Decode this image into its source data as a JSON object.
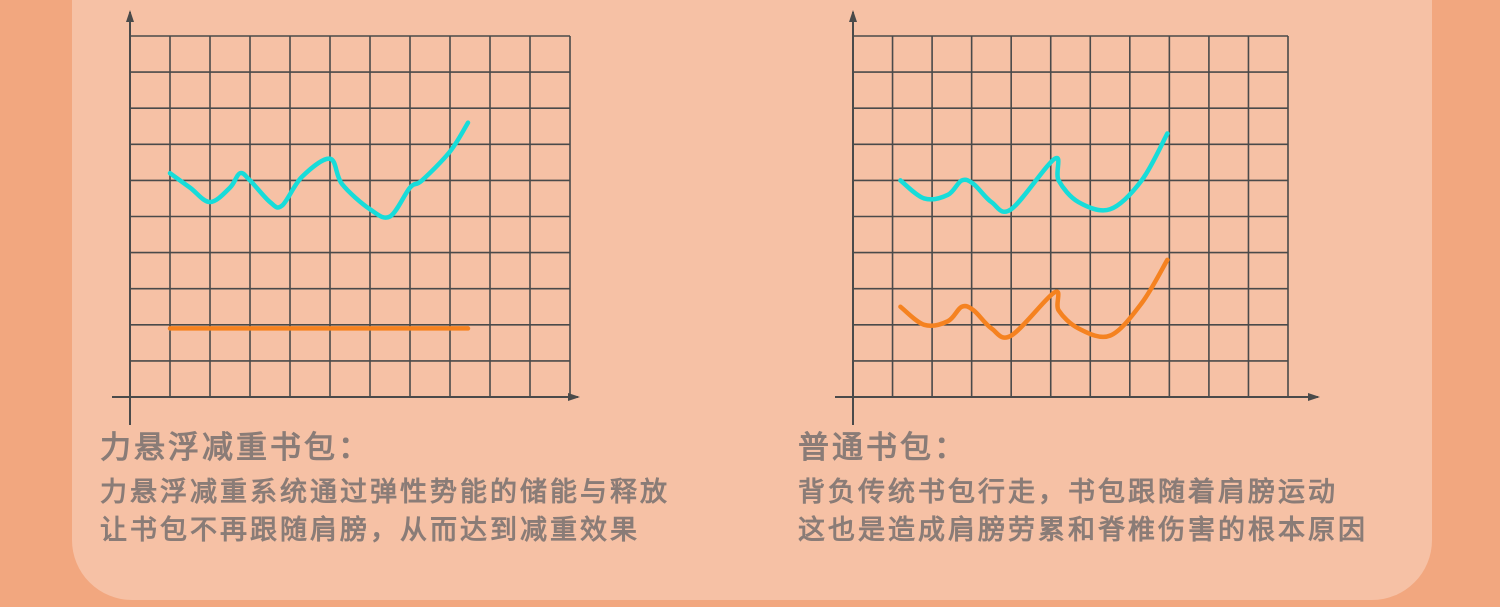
{
  "colors": {
    "background": "#f2a77f",
    "panel": "#f6c1a5",
    "grid": "#4a4a4a",
    "cyan_series": "#17dcd9",
    "orange_series": "#f58220",
    "caption_text": "#8a7c77"
  },
  "left": {
    "title": "力悬浮减重书包：",
    "lines": [
      "力悬浮减重系统通过弹性势能的储能与释放",
      "让书包不再跟随肩膀，从而达到减重效果"
    ]
  },
  "right": {
    "title": "普通书包：",
    "lines": [
      "背负传统书包行走，书包跟随着肩膀运动",
      "这也是造成肩膀劳累和脊椎伤害的根本原因"
    ]
  },
  "chart_data": [
    {
      "type": "line",
      "title": "",
      "xlabel": "",
      "ylabel": "",
      "grid": true,
      "xlim": [
        0,
        11
      ],
      "ylim": [
        0,
        10
      ],
      "series": [
        {
          "color": "#17dcd9",
          "x": [
            1,
            1.5,
            2,
            2.5,
            2.75,
            3,
            3.5,
            3.8,
            4.3,
            5,
            5.3,
            6,
            6.5,
            7,
            7.3,
            8,
            8.45
          ],
          "y": [
            6.2,
            5.8,
            5.4,
            5.8,
            6.2,
            6.0,
            5.4,
            5.3,
            6.1,
            6.6,
            5.9,
            5.2,
            5.0,
            5.8,
            6.0,
            6.8,
            7.6
          ]
        },
        {
          "color": "#f58220",
          "x": [
            1,
            8.45
          ],
          "y": [
            1.9,
            1.9
          ]
        }
      ]
    },
    {
      "type": "line",
      "title": "",
      "xlabel": "",
      "ylabel": "",
      "grid": true,
      "xlim": [
        0,
        11
      ],
      "ylim": [
        0,
        10
      ],
      "series": [
        {
          "color": "#17dcd9",
          "x": [
            1.2,
            1.8,
            2.4,
            2.75,
            3.05,
            3.5,
            4,
            5.1,
            5.2,
            5.7,
            6.5,
            7.3,
            7.95
          ],
          "y": [
            6.0,
            5.5,
            5.6,
            6.0,
            5.9,
            5.4,
            5.2,
            6.6,
            6.0,
            5.4,
            5.2,
            6.0,
            7.3
          ]
        },
        {
          "color": "#f58220",
          "x": [
            1.2,
            1.8,
            2.4,
            2.75,
            3.05,
            3.5,
            4,
            5.1,
            5.2,
            5.7,
            6.5,
            7.3,
            7.95
          ],
          "y": [
            2.5,
            2.0,
            2.1,
            2.5,
            2.4,
            1.9,
            1.7,
            2.9,
            2.4,
            1.9,
            1.7,
            2.6,
            3.8
          ]
        }
      ]
    }
  ]
}
